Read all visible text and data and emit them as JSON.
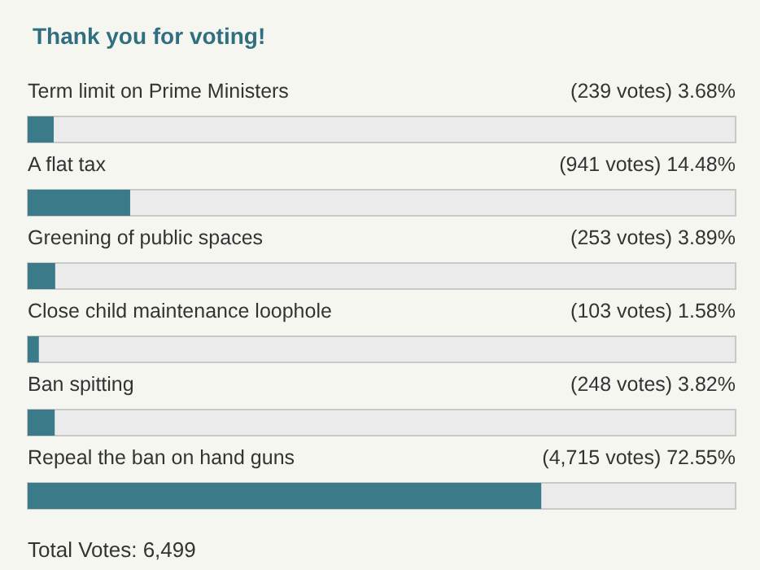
{
  "chart_data": {
    "type": "bar",
    "orientation": "horizontal",
    "title": "Thank you for voting!",
    "categories": [
      "Term limit on Prime Ministers",
      "A flat tax",
      "Greening of public spaces",
      "Close child maintenance loophole",
      "Ban spitting",
      "Repeal the ban on hand guns"
    ],
    "values": [
      3.68,
      14.48,
      3.89,
      1.58,
      3.82,
      72.55
    ],
    "value_labels": [
      "(239 votes) 3.68%",
      "(941 votes) 14.48%",
      "(253 votes) 3.89%",
      "(103 votes) 1.58%",
      "(248 votes) 3.82%",
      "(4,715 votes) 72.55%"
    ],
    "color": "#3a7a89",
    "xlim": [
      0,
      100
    ],
    "tick_labels": false,
    "annotations": [
      "Total Votes: 6,499"
    ]
  }
}
